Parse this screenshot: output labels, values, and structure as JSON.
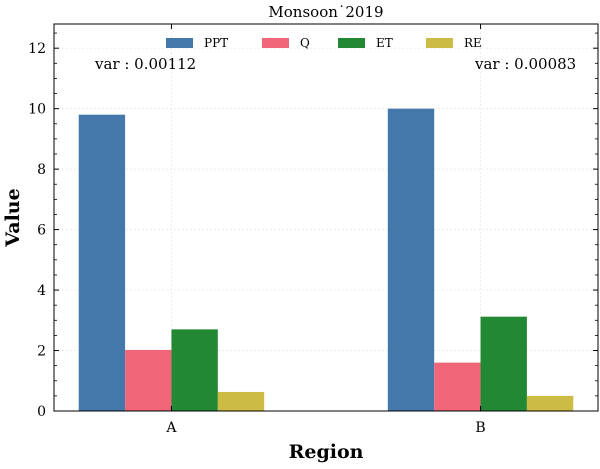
{
  "chart_data": {
    "type": "bar",
    "title": "Monsoon˙2019",
    "xlabel": "Region",
    "ylabel": "Value",
    "categories": [
      "A",
      "B"
    ],
    "ylim": [
      0,
      12.8
    ],
    "yticks": [
      0,
      2,
      4,
      6,
      8,
      10,
      12
    ],
    "grid": true,
    "legend_position": "top",
    "series": [
      {
        "name": "PPT",
        "values": [
          9.8,
          10.0
        ],
        "color": "#4477aa"
      },
      {
        "name": "Q",
        "values": [
          2.02,
          1.6
        ],
        "color": "#ee6677"
      },
      {
        "name": "ET",
        "values": [
          2.7,
          3.12
        ],
        "color": "#228833"
      },
      {
        "name": "RE",
        "values": [
          0.63,
          0.5
        ],
        "color": "#ccbb44"
      }
    ],
    "annotations": [
      "var : 0.00112",
      "var : 0.00083"
    ]
  }
}
